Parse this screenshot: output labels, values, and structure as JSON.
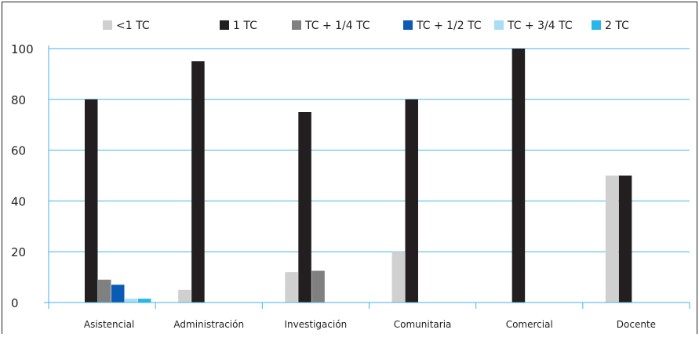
{
  "chart_data": {
    "type": "bar",
    "title": "",
    "xlabel": "",
    "ylabel": "",
    "ylim": [
      0,
      100
    ],
    "yticks": [
      0,
      20,
      40,
      60,
      80,
      100
    ],
    "grid": true,
    "legend_position": "top",
    "categories": [
      "Asistencial",
      "Administración",
      "Investigación",
      "Comunitaria",
      "Comercial",
      "Docente"
    ],
    "series": [
      {
        "name": "<1 TC",
        "color": "#d0d0d0",
        "values": [
          0,
          5,
          12,
          20,
          0,
          50
        ]
      },
      {
        "name": "1 TC",
        "color": "#231f20",
        "values": [
          80,
          95,
          75,
          80,
          100,
          50
        ]
      },
      {
        "name": "TC + 1/4 TC",
        "color": "#808080",
        "values": [
          9,
          0,
          12.5,
          0,
          0,
          0
        ]
      },
      {
        "name": "TC + 1/2 TC",
        "color": "#0b5bb5",
        "values": [
          7,
          0,
          0,
          0,
          0,
          0
        ]
      },
      {
        "name": "TC + 3/4 TC",
        "color": "#a9ddf5",
        "values": [
          1.5,
          0,
          0,
          0,
          0,
          0
        ]
      },
      {
        "name": "2 TC",
        "color": "#29b6e8",
        "values": [
          1.5,
          0,
          0,
          0,
          0,
          0
        ]
      }
    ]
  }
}
